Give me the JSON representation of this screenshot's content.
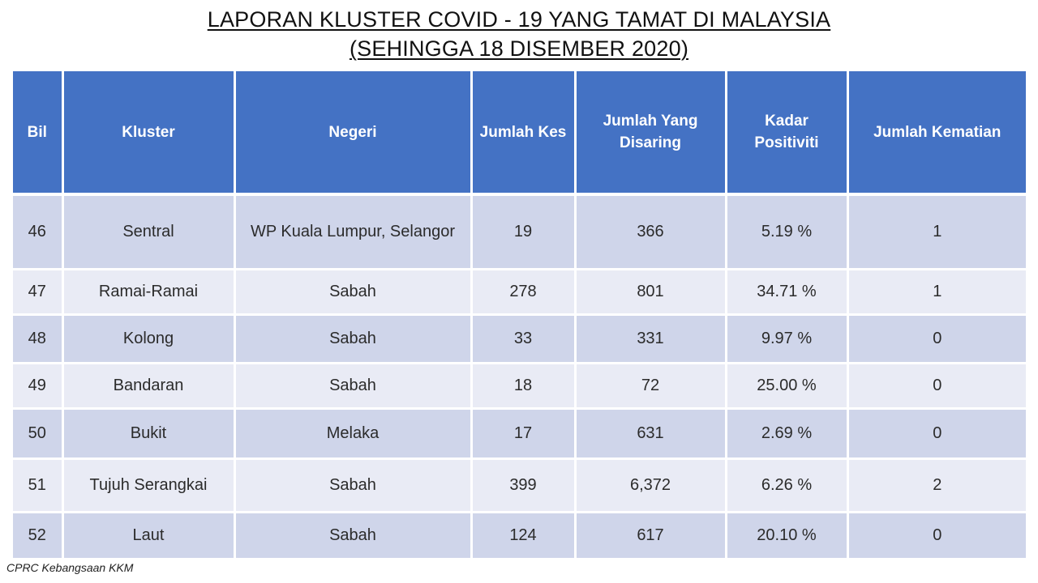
{
  "title": {
    "line1": "LAPORAN KLUSTER COVID - 19 YANG TAMAT DI MALAYSIA",
    "line2": "(SEHINGGA 18 DISEMBER 2020)"
  },
  "table": {
    "headers": {
      "bil": "Bil",
      "kluster": "Kluster",
      "negeri": "Negeri",
      "jumlah_kes": "Jumlah Kes",
      "jumlah_disaring": "Jumlah Yang Disaring",
      "kadar_positiviti": "Kadar Positiviti",
      "jumlah_kematian": "Jumlah Kematian"
    },
    "rows": [
      {
        "bil": "46",
        "kluster": "Sentral",
        "negeri": "WP Kuala Lumpur, Selangor",
        "jumlah_kes": "19",
        "jumlah_disaring": "366",
        "kadar_positiviti": "5.19 %",
        "jumlah_kematian": "1"
      },
      {
        "bil": "47",
        "kluster": "Ramai-Ramai",
        "negeri": "Sabah",
        "jumlah_kes": "278",
        "jumlah_disaring": "801",
        "kadar_positiviti": "34.71 %",
        "jumlah_kematian": "1"
      },
      {
        "bil": "48",
        "kluster": "Kolong",
        "negeri": "Sabah",
        "jumlah_kes": "33",
        "jumlah_disaring": "331",
        "kadar_positiviti": "9.97 %",
        "jumlah_kematian": "0"
      },
      {
        "bil": "49",
        "kluster": "Bandaran",
        "negeri": "Sabah",
        "jumlah_kes": "18",
        "jumlah_disaring": "72",
        "kadar_positiviti": "25.00 %",
        "jumlah_kematian": "0"
      },
      {
        "bil": "50",
        "kluster": "Bukit",
        "negeri": "Melaka",
        "jumlah_kes": "17",
        "jumlah_disaring": "631",
        "kadar_positiviti": "2.69 %",
        "jumlah_kematian": "0"
      },
      {
        "bil": "51",
        "kluster": "Tujuh Serangkai",
        "negeri": "Sabah",
        "jumlah_kes": "399",
        "jumlah_disaring": "6,372",
        "kadar_positiviti": "6.26 %",
        "jumlah_kematian": "2"
      },
      {
        "bil": "52",
        "kluster": "Laut",
        "negeri": "Sabah",
        "jumlah_kes": "124",
        "jumlah_disaring": "617",
        "kadar_positiviti": "20.10 %",
        "jumlah_kematian": "0"
      }
    ]
  },
  "footer": {
    "source": "CPRC Kebangsaan KKM"
  }
}
